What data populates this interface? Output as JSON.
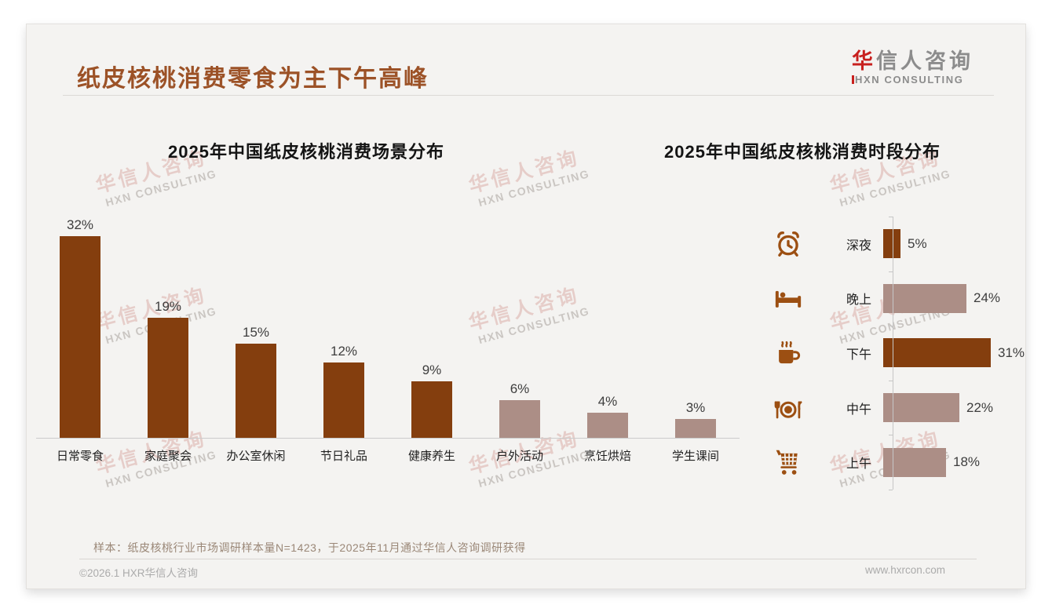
{
  "page": {
    "title": "纸皮核桃消费零食为主下午高峰",
    "logo": {
      "zh_first": "华",
      "zh_rest": "信人咨询",
      "en": "HXN CONSULTING"
    },
    "watermark": {
      "zh": "华信人咨询",
      "en": "HXN CONSULTING"
    },
    "note": "样本：纸皮核桃行业市场调研样本量N=1423，于2025年11月通过华信人咨询调研获得",
    "footer_left": "©2026.1 HXR华信人咨询",
    "footer_right": "www.hxrcon.com"
  },
  "colors": {
    "dark": "#843E0E",
    "light": "#AC8E86",
    "icon": "#9C4F12",
    "accent_red": "#C8201E"
  },
  "chart_data": [
    {
      "type": "bar",
      "title": "2025年中国纸皮核桃消费场景分布",
      "categories": [
        "日常零食",
        "家庭聚会",
        "办公室休闲",
        "节日礼品",
        "健康养生",
        "户外活动",
        "烹饪烘焙",
        "学生课间"
      ],
      "values": [
        32,
        19,
        15,
        12,
        9,
        6,
        4,
        3
      ],
      "unit": "%",
      "bar_colors": [
        "dark",
        "dark",
        "dark",
        "dark",
        "dark",
        "light",
        "light",
        "light"
      ],
      "ylim": [
        0,
        34
      ],
      "grid": false,
      "legend": "none",
      "value_labels": "above bars"
    },
    {
      "type": "bar",
      "orientation": "horizontal",
      "title": "2025年中国纸皮核桃消费时段分布",
      "categories": [
        "深夜",
        "晚上",
        "下午",
        "中午",
        "上午"
      ],
      "values": [
        5,
        24,
        31,
        22,
        18
      ],
      "unit": "%",
      "bar_colors": [
        "dark",
        "light",
        "dark",
        "light",
        "light"
      ],
      "icons": [
        "alarm-clock-icon",
        "bed-icon",
        "coffee-icon",
        "dining-icon",
        "cart-icon"
      ],
      "xlim": [
        0,
        35
      ],
      "grid": false,
      "legend": "none",
      "value_labels": "right of bars"
    }
  ]
}
